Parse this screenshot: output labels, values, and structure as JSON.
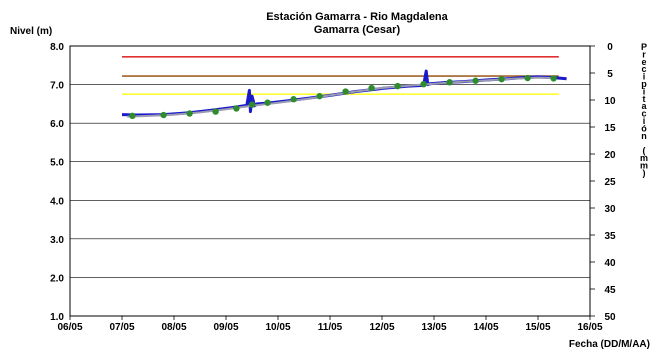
{
  "chart_data": {
    "type": "line",
    "title": "Estación Gamarra - Rio Magdalena",
    "subtitle": "Gamarra (Cesar)",
    "ylabel": "Nivel (m)",
    "xlabel": "Fecha (DD/M/AA)",
    "y2label": "Precipitación (mm)",
    "x_ticks": [
      "06/05",
      "07/05",
      "08/05",
      "09/05",
      "10/05",
      "11/05",
      "12/05",
      "13/05",
      "14/05",
      "15/05",
      "16/05"
    ],
    "y_ticks": [
      "1.0",
      "2.0",
      "3.0",
      "4.0",
      "5.0",
      "6.0",
      "7.0",
      "8.0"
    ],
    "y2_ticks": [
      "0",
      "5",
      "10",
      "15",
      "20",
      "25",
      "30",
      "35",
      "40",
      "45",
      "50"
    ],
    "ylim": [
      1.0,
      8.0
    ],
    "y2lim": [
      0,
      50
    ],
    "xlim": [
      0,
      10
    ],
    "grid": true,
    "thresholds": [
      {
        "value": 7.72,
        "color": "#e03030"
      },
      {
        "value": 7.22,
        "color": "#a0622d"
      },
      {
        "value": 6.75,
        "color": "#ffff33"
      }
    ],
    "series": [
      {
        "style": "line",
        "color": "#1a1acc",
        "x": [
          1.0,
          1.3,
          1.8,
          2.3,
          2.7,
          3.1,
          3.4,
          3.45,
          3.47,
          3.5,
          3.55,
          3.6,
          3.8,
          4.2,
          4.6,
          5.0,
          5.5,
          6.0,
          6.5,
          6.8,
          6.85,
          6.88,
          6.92,
          7.2,
          7.6,
          8.0,
          8.4,
          8.7,
          9.0,
          9.3,
          9.55
        ],
        "values": [
          6.22,
          6.21,
          6.22,
          6.27,
          6.33,
          6.4,
          6.46,
          6.85,
          6.3,
          6.7,
          6.45,
          6.5,
          6.52,
          6.58,
          6.65,
          6.72,
          6.82,
          6.9,
          6.96,
          6.98,
          7.35,
          7.0,
          7.02,
          7.05,
          7.08,
          7.12,
          7.15,
          7.18,
          7.2,
          7.18,
          7.15
        ]
      },
      {
        "style": "line",
        "color": "#9a9ab0",
        "x": [
          1.1,
          1.5,
          2.0,
          2.5,
          3.0,
          3.5,
          4.0,
          4.5,
          5.0,
          5.5,
          6.0,
          6.5,
          7.0,
          7.5,
          8.0,
          8.5,
          9.0,
          9.3
        ],
        "values": [
          6.17,
          6.19,
          6.22,
          6.28,
          6.36,
          6.45,
          6.53,
          6.62,
          6.72,
          6.82,
          6.91,
          6.97,
          7.02,
          7.07,
          7.11,
          7.15,
          7.18,
          7.17
        ]
      },
      {
        "style": "markers",
        "color": "#2e8b2e",
        "x": [
          1.2,
          1.8,
          2.3,
          2.8,
          3.2,
          3.5,
          3.8,
          4.3,
          4.8,
          5.3,
          5.8,
          6.3,
          6.8,
          7.3,
          7.8,
          8.3,
          8.8,
          9.3
        ],
        "values": [
          6.19,
          6.21,
          6.25,
          6.3,
          6.38,
          6.48,
          6.53,
          6.62,
          6.7,
          6.82,
          6.91,
          6.96,
          7.01,
          7.06,
          7.1,
          7.14,
          7.17,
          7.16
        ]
      }
    ]
  }
}
